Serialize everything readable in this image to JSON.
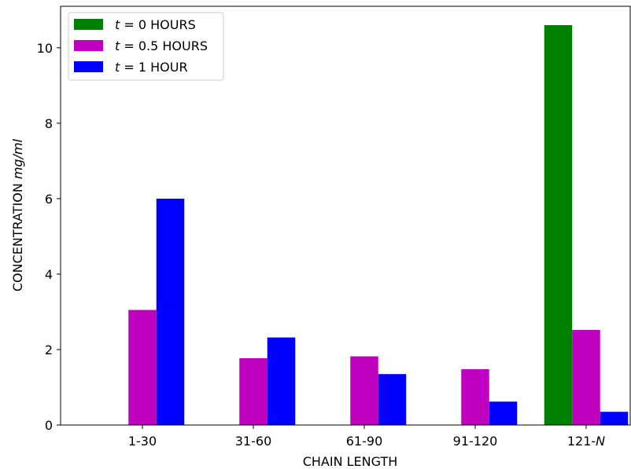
{
  "chart_data": {
    "type": "bar",
    "categories": [
      "1-30",
      "31-60",
      "61-90",
      "91-120",
      "121-N"
    ],
    "category_labels": [
      {
        "text": "1-30",
        "italic_suffix": ""
      },
      {
        "text": "31-60",
        "italic_suffix": ""
      },
      {
        "text": "61-90",
        "italic_suffix": ""
      },
      {
        "text": "91-120",
        "italic_suffix": ""
      },
      {
        "text": "121-",
        "italic_suffix": "N"
      }
    ],
    "series": [
      {
        "name": "t = 0 HOURS",
        "var": "t",
        "eq": " = 0 HOURS",
        "color": "#008000",
        "values": [
          null,
          null,
          null,
          null,
          10.6
        ]
      },
      {
        "name": "t = 0.5 HOURS",
        "var": "t",
        "eq": " = 0.5 HOURS",
        "color": "#bf00bf",
        "values": [
          3.05,
          1.77,
          1.82,
          1.48,
          2.52
        ]
      },
      {
        "name": "t = 1 HOUR",
        "var": "t",
        "eq": " = 1 HOUR",
        "color": "#0000ff",
        "values": [
          6.0,
          2.32,
          1.35,
          0.62,
          0.35
        ]
      }
    ],
    "xlabel": "CHAIN LENGTH",
    "ylabel": {
      "text": "CONCENTRATION ",
      "italic": "mg/ml"
    },
    "ylim": [
      0,
      11.1
    ],
    "yticks": [
      0,
      2,
      4,
      6,
      8,
      10
    ],
    "grid": false,
    "legend_position": "top-left"
  }
}
